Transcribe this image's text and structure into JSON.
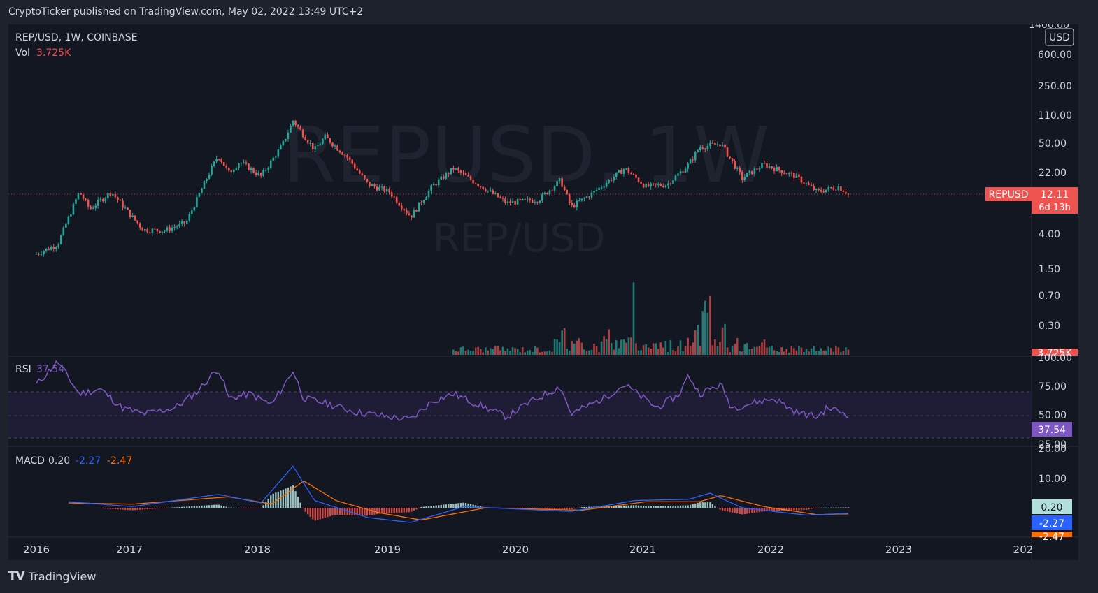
{
  "header": {
    "publisher": "CryptoTicker published on TradingView.com, May 02, 2022 13:49 UTC+2"
  },
  "footer": {
    "brand": "TradingView",
    "logo": "TV"
  },
  "chart_data": [
    {
      "type": "candlestick",
      "symbol_line": "REP/USD, 1W, COINBASE",
      "watermark_symbol": "REPUSD, 1W",
      "watermark_name": "REP/USD",
      "vol_label": "Vol",
      "vol_value": "3.725K",
      "price_unit": "USD",
      "y_scale": "log",
      "ylim": [
        0.13,
        1400
      ],
      "y_ticks": [
        "1400.00",
        "600.00",
        "250.00",
        "110.00",
        "50.00",
        "22.00",
        "4.00",
        "1.50",
        "0.70",
        "0.30"
      ],
      "last_price_label": {
        "symbol": "REPUSD",
        "price": "12.11",
        "countdown": "6d 13h",
        "vol": "3.725K"
      },
      "x_ticks": [
        "2016",
        "2017",
        "2018",
        "2019",
        "2020",
        "2021",
        "2022",
        "2023",
        "202"
      ],
      "colors": {
        "up": "#26a69a",
        "down": "#ef5350",
        "background": "#131722"
      },
      "approx_close_path": [
        {
          "date": "2016-01",
          "close": 2.3
        },
        {
          "date": "2016-03",
          "close": 3.0
        },
        {
          "date": "2016-05",
          "close": 13
        },
        {
          "date": "2016-06",
          "close": 8
        },
        {
          "date": "2016-08",
          "close": 13
        },
        {
          "date": "2016-09",
          "close": 9
        },
        {
          "date": "2016-11",
          "close": 4.5
        },
        {
          "date": "2017-01",
          "close": 4.4
        },
        {
          "date": "2017-03",
          "close": 5.5
        },
        {
          "date": "2017-05",
          "close": 20
        },
        {
          "date": "2017-06",
          "close": 36
        },
        {
          "date": "2017-07",
          "close": 22
        },
        {
          "date": "2017-08",
          "close": 30
        },
        {
          "date": "2017-10",
          "close": 20
        },
        {
          "date": "2017-12",
          "close": 48
        },
        {
          "date": "2018-01",
          "close": 95
        },
        {
          "date": "2018-03",
          "close": 42
        },
        {
          "date": "2018-04",
          "close": 60
        },
        {
          "date": "2018-06",
          "close": 35
        },
        {
          "date": "2018-08",
          "close": 16
        },
        {
          "date": "2018-10",
          "close": 13
        },
        {
          "date": "2018-12",
          "close": 6.5
        },
        {
          "date": "2019-02",
          "close": 15
        },
        {
          "date": "2019-04",
          "close": 25
        },
        {
          "date": "2019-07",
          "close": 14
        },
        {
          "date": "2019-09",
          "close": 9.5
        },
        {
          "date": "2019-12",
          "close": 10.5
        },
        {
          "date": "2020-02",
          "close": 18
        },
        {
          "date": "2020-03",
          "close": 8.5
        },
        {
          "date": "2020-05",
          "close": 12.5
        },
        {
          "date": "2020-08",
          "close": 25
        },
        {
          "date": "2020-10",
          "close": 15
        },
        {
          "date": "2020-12",
          "close": 16
        },
        {
          "date": "2021-02",
          "close": 28
        },
        {
          "date": "2021-03",
          "close": 45
        },
        {
          "date": "2021-05",
          "close": 50
        },
        {
          "date": "2021-07",
          "close": 19
        },
        {
          "date": "2021-09",
          "close": 28
        },
        {
          "date": "2021-12",
          "close": 20
        },
        {
          "date": "2022-02",
          "close": 13
        },
        {
          "date": "2022-04",
          "close": 15
        },
        {
          "date": "2022-05",
          "close": 12.11
        }
      ]
    },
    {
      "type": "line",
      "name": "RSI",
      "label": "RSI",
      "value": "37.54",
      "ylim": [
        0,
        100
      ],
      "y_ticks": [
        "100.00",
        "75.00",
        "50.00",
        "25.00"
      ],
      "bands": [
        30,
        50,
        70
      ],
      "color": "#7e57c2",
      "series": [
        {
          "date": "2016-01",
          "value": 70
        },
        {
          "date": "2016-03",
          "value": 95
        },
        {
          "date": "2016-05",
          "value": 60
        },
        {
          "date": "2016-07",
          "value": 65
        },
        {
          "date": "2016-09",
          "value": 45
        },
        {
          "date": "2016-11",
          "value": 38
        },
        {
          "date": "2017-02",
          "value": 45
        },
        {
          "date": "2017-04",
          "value": 62
        },
        {
          "date": "2017-06",
          "value": 88
        },
        {
          "date": "2017-07",
          "value": 55
        },
        {
          "date": "2017-09",
          "value": 60
        },
        {
          "date": "2017-11",
          "value": 48
        },
        {
          "date": "2018-01",
          "value": 85
        },
        {
          "date": "2018-02",
          "value": 55
        },
        {
          "date": "2018-04",
          "value": 50
        },
        {
          "date": "2018-07",
          "value": 40
        },
        {
          "date": "2018-10",
          "value": 35
        },
        {
          "date": "2018-12",
          "value": 32
        },
        {
          "date": "2019-02",
          "value": 52
        },
        {
          "date": "2019-04",
          "value": 60
        },
        {
          "date": "2019-07",
          "value": 45
        },
        {
          "date": "2019-09",
          "value": 35
        },
        {
          "date": "2019-11",
          "value": 50
        },
        {
          "date": "2020-02",
          "value": 68
        },
        {
          "date": "2020-03",
          "value": 38
        },
        {
          "date": "2020-06",
          "value": 55
        },
        {
          "date": "2020-08",
          "value": 70
        },
        {
          "date": "2020-11",
          "value": 45
        },
        {
          "date": "2021-01",
          "value": 58
        },
        {
          "date": "2021-02",
          "value": 80
        },
        {
          "date": "2021-03",
          "value": 60
        },
        {
          "date": "2021-05",
          "value": 70
        },
        {
          "date": "2021-06",
          "value": 45
        },
        {
          "date": "2021-08",
          "value": 50
        },
        {
          "date": "2021-10",
          "value": 55
        },
        {
          "date": "2021-12",
          "value": 40
        },
        {
          "date": "2022-02",
          "value": 35
        },
        {
          "date": "2022-03",
          "value": 45
        },
        {
          "date": "2022-05",
          "value": 37.54
        }
      ]
    },
    {
      "type": "line",
      "name": "MACD",
      "label": "MACD",
      "values_text": [
        "0.20",
        "-2.27",
        "-2.47"
      ],
      "value_colors": [
        "#b2dfdb",
        "#2962ff",
        "#ff6d00"
      ],
      "y_ticks": [
        "20.00",
        "10.00"
      ],
      "side_labels": [
        "0.20",
        "-2.27",
        "-2.47"
      ],
      "macd_line": [
        {
          "date": "2016-04",
          "value": 2.5
        },
        {
          "date": "2016-10",
          "value": 0.5
        },
        {
          "date": "2017-06",
          "value": 5.5
        },
        {
          "date": "2017-10",
          "value": 2
        },
        {
          "date": "2018-01",
          "value": 17
        },
        {
          "date": "2018-03",
          "value": 3
        },
        {
          "date": "2018-08",
          "value": -4
        },
        {
          "date": "2018-12",
          "value": -6
        },
        {
          "date": "2019-05",
          "value": 0.5
        },
        {
          "date": "2020-03",
          "value": -1.5
        },
        {
          "date": "2020-09",
          "value": 3
        },
        {
          "date": "2021-02",
          "value": 3.5
        },
        {
          "date": "2021-04",
          "value": 6
        },
        {
          "date": "2021-07",
          "value": 0
        },
        {
          "date": "2022-01",
          "value": -3
        },
        {
          "date": "2022-05",
          "value": -2.27
        }
      ],
      "signal_line": [
        {
          "date": "2016-04",
          "value": 2
        },
        {
          "date": "2016-10",
          "value": 1.5
        },
        {
          "date": "2017-07",
          "value": 4.5
        },
        {
          "date": "2017-11",
          "value": 1.5
        },
        {
          "date": "2018-02",
          "value": 11
        },
        {
          "date": "2018-05",
          "value": 3
        },
        {
          "date": "2018-09",
          "value": -2
        },
        {
          "date": "2019-01",
          "value": -5
        },
        {
          "date": "2019-07",
          "value": 0
        },
        {
          "date": "2020-04",
          "value": -1
        },
        {
          "date": "2020-10",
          "value": 2.5
        },
        {
          "date": "2021-03",
          "value": 2.5
        },
        {
          "date": "2021-05",
          "value": 5
        },
        {
          "date": "2021-09",
          "value": 0.5
        },
        {
          "date": "2022-02",
          "value": -2.8
        },
        {
          "date": "2022-05",
          "value": -2.47
        }
      ]
    }
  ]
}
